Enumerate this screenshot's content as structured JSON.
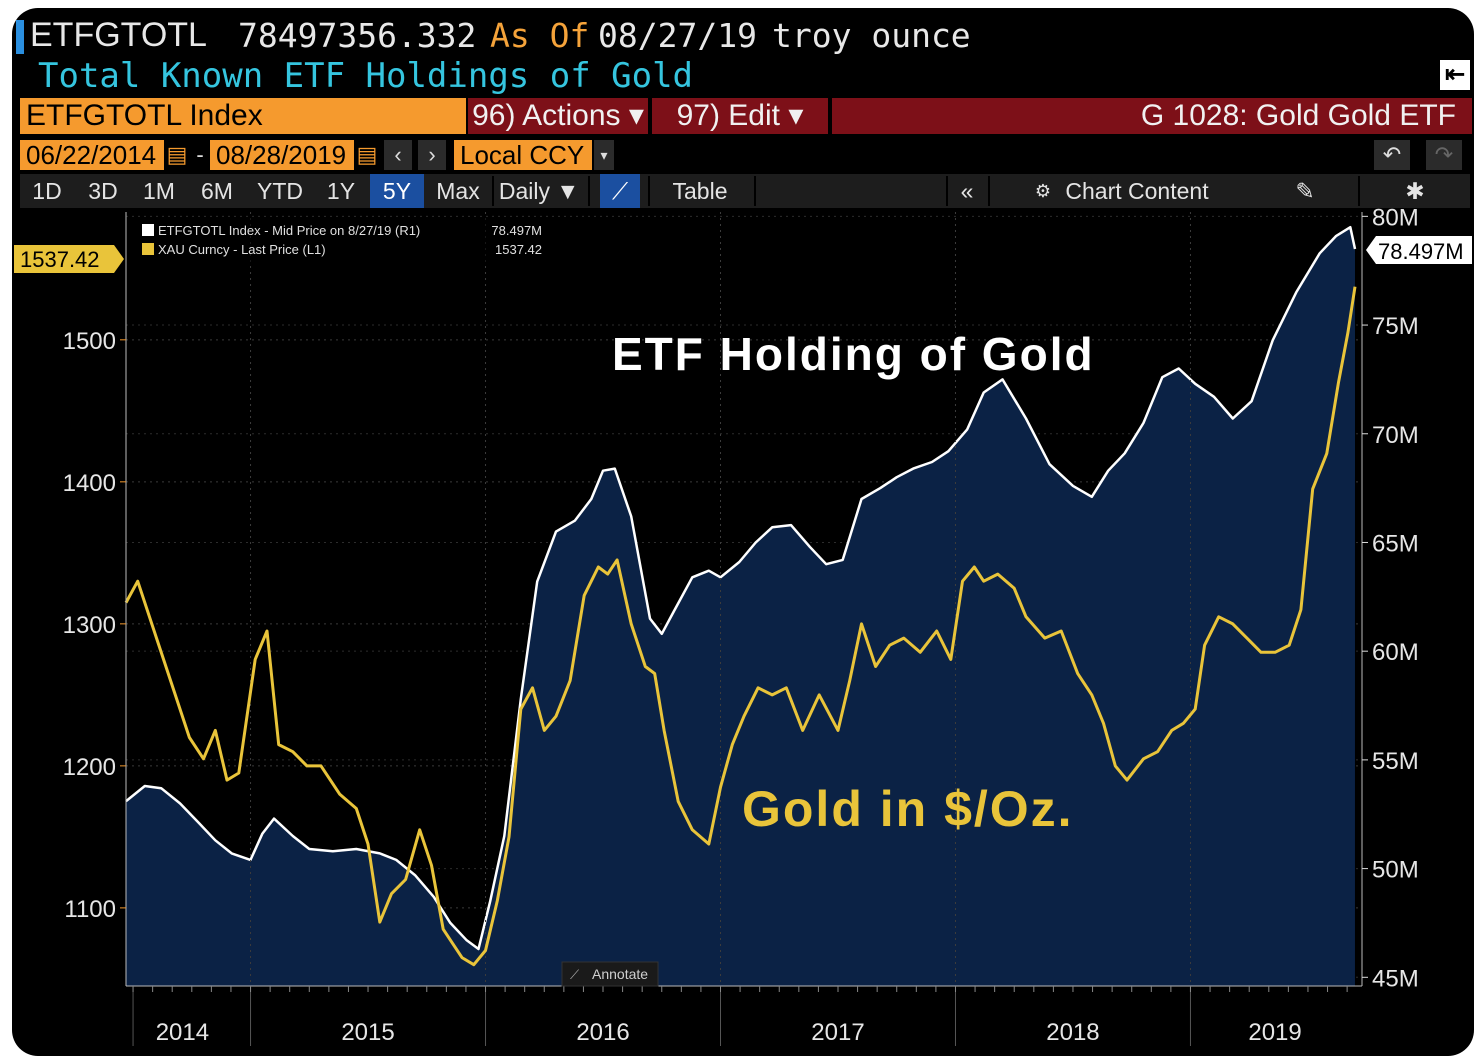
{
  "header": {
    "ticker": "ETFGTOTL",
    "value": "78497356.332",
    "as_of_label": "As Of",
    "as_of_date": "08/27/19",
    "unit": "troy ounce",
    "subtitle": "Total Known ETF Holdings of Gold"
  },
  "security_field": "ETFGTOTL Index",
  "actions_label": "96) Actions ▾",
  "edit_label": "97) Edit ▾",
  "chart_id_label": "G 1028: Gold Gold ETF",
  "start_date": "06/22/2014",
  "end_date": "08/28/2019",
  "date_dash": "-",
  "currency": "Local CCY",
  "periods": [
    "1D",
    "3D",
    "1M",
    "6M",
    "YTD",
    "1Y",
    "5Y",
    "Max"
  ],
  "selected_period": "5Y",
  "frequency": "Daily ▼",
  "table_label": "Table",
  "chart_content_label": "Chart Content",
  "annotate_label": "Annotate",
  "colors": {
    "accent_orange": "#f59a2e",
    "gold_line": "#e9c43a",
    "etf_area": "#0b2245",
    "etf_line": "#ffffff",
    "action_red": "#7d1018",
    "subtitle_cyan": "#35c5df"
  },
  "chart_data": {
    "type": "line",
    "title_annotation": "ETF Holding of Gold",
    "gold_annotation": "Gold in $/Oz.",
    "legend": [
      {
        "label": "ETFGTOTL Index - Mid Price on 8/27/19 (R1)",
        "value": "78.497M"
      },
      {
        "label": "XAU Curncy - Last Price (L1)",
        "value": "1537.42"
      }
    ],
    "last_value_left": "1537.42",
    "last_value_right": "78.497M",
    "x_tick_labels": [
      "2014",
      "2015",
      "2016",
      "2017",
      "2018",
      "2019"
    ],
    "left_axis": {
      "ticks": [
        1100,
        1200,
        1300,
        1400,
        1500
      ],
      "ylim": [
        1045,
        1590
      ]
    },
    "right_axis": {
      "ticks": [
        "45M",
        "50M",
        "55M",
        "60M",
        "65M",
        "70M",
        "75M",
        "80M"
      ],
      "tick_values": [
        45,
        50,
        55,
        60,
        65,
        70,
        75,
        80
      ],
      "ylim": [
        44.6,
        80.2
      ]
    },
    "xlim": [
      2014.47,
      2019.73
    ],
    "series": [
      {
        "name": "ETFGTOTL Index (R1, millions troy oz)",
        "axis": "right",
        "x": [
          2014.47,
          2014.55,
          2014.62,
          2014.7,
          2014.78,
          2014.85,
          2014.92,
          2015.0,
          2015.05,
          2015.1,
          2015.18,
          2015.25,
          2015.35,
          2015.45,
          2015.55,
          2015.62,
          2015.7,
          2015.78,
          2015.85,
          2015.92,
          2015.97,
          2016.02,
          2016.08,
          2016.15,
          2016.22,
          2016.3,
          2016.38,
          2016.45,
          2016.5,
          2016.55,
          2016.62,
          2016.7,
          2016.75,
          2016.8,
          2016.88,
          2016.95,
          2017.0,
          2017.08,
          2017.15,
          2017.22,
          2017.3,
          2017.38,
          2017.45,
          2017.52,
          2017.6,
          2017.68,
          2017.75,
          2017.82,
          2017.9,
          2017.97,
          2018.05,
          2018.12,
          2018.2,
          2018.3,
          2018.4,
          2018.5,
          2018.58,
          2018.65,
          2018.72,
          2018.8,
          2018.88,
          2018.95,
          2019.02,
          2019.1,
          2019.18,
          2019.26,
          2019.35,
          2019.45,
          2019.55,
          2019.62,
          2019.68,
          2019.7
        ],
        "values": [
          53.1,
          53.8,
          53.7,
          53.0,
          52.1,
          51.3,
          50.7,
          50.4,
          51.6,
          52.3,
          51.5,
          50.9,
          50.8,
          50.9,
          50.7,
          50.4,
          49.7,
          48.7,
          47.5,
          46.7,
          46.3,
          48.5,
          51.5,
          57.8,
          63.2,
          65.5,
          66.0,
          67.0,
          68.3,
          68.4,
          66.2,
          61.5,
          60.8,
          61.8,
          63.4,
          63.7,
          63.4,
          64.1,
          65.0,
          65.7,
          65.8,
          64.8,
          64.0,
          64.2,
          67.0,
          67.5,
          68.0,
          68.4,
          68.7,
          69.2,
          70.2,
          71.9,
          72.5,
          70.7,
          68.6,
          67.6,
          67.1,
          68.3,
          69.1,
          70.5,
          72.6,
          73.0,
          72.3,
          71.7,
          70.7,
          71.5,
          74.3,
          76.5,
          78.3,
          79.1,
          79.5,
          78.497
        ]
      },
      {
        "name": "XAU Curncy (L1, $/oz)",
        "axis": "left",
        "x": [
          2014.47,
          2014.52,
          2014.6,
          2014.68,
          2014.74,
          2014.8,
          2014.85,
          2014.9,
          2014.95,
          2015.02,
          2015.07,
          2015.12,
          2015.18,
          2015.24,
          2015.3,
          2015.38,
          2015.45,
          2015.5,
          2015.55,
          2015.6,
          2015.66,
          2015.72,
          2015.77,
          2015.82,
          2015.86,
          2015.9,
          2015.95,
          2016.0,
          2016.05,
          2016.1,
          2016.15,
          2016.2,
          2016.25,
          2016.3,
          2016.36,
          2016.42,
          2016.48,
          2016.52,
          2016.56,
          2016.62,
          2016.68,
          2016.72,
          2016.76,
          2016.82,
          2016.88,
          2016.95,
          2017.0,
          2017.05,
          2017.1,
          2017.16,
          2017.22,
          2017.28,
          2017.35,
          2017.42,
          2017.5,
          2017.55,
          2017.6,
          2017.66,
          2017.72,
          2017.78,
          2017.85,
          2017.92,
          2017.98,
          2018.03,
          2018.08,
          2018.12,
          2018.18,
          2018.25,
          2018.3,
          2018.38,
          2018.45,
          2018.52,
          2018.58,
          2018.63,
          2018.68,
          2018.73,
          2018.8,
          2018.86,
          2018.92,
          2018.97,
          2019.02,
          2019.06,
          2019.12,
          2019.18,
          2019.24,
          2019.3,
          2019.36,
          2019.42,
          2019.47,
          2019.52,
          2019.58,
          2019.63,
          2019.67,
          2019.7
        ],
        "values": [
          1315,
          1330,
          1290,
          1250,
          1220,
          1205,
          1225,
          1190,
          1195,
          1275,
          1295,
          1215,
          1210,
          1200,
          1200,
          1180,
          1170,
          1145,
          1090,
          1110,
          1120,
          1155,
          1130,
          1085,
          1075,
          1065,
          1060,
          1070,
          1105,
          1150,
          1240,
          1255,
          1225,
          1235,
          1260,
          1320,
          1340,
          1335,
          1345,
          1300,
          1270,
          1265,
          1225,
          1175,
          1155,
          1145,
          1185,
          1215,
          1235,
          1255,
          1250,
          1255,
          1225,
          1250,
          1225,
          1260,
          1300,
          1270,
          1285,
          1290,
          1280,
          1295,
          1275,
          1330,
          1340,
          1330,
          1335,
          1325,
          1305,
          1290,
          1295,
          1265,
          1250,
          1230,
          1200,
          1190,
          1205,
          1210,
          1225,
          1230,
          1240,
          1285,
          1305,
          1300,
          1290,
          1280,
          1280,
          1285,
          1310,
          1395,
          1420,
          1470,
          1505,
          1537.42
        ]
      }
    ]
  }
}
